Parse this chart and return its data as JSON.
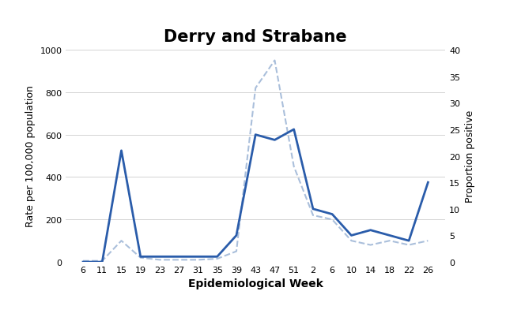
{
  "title": "Derry and Strabane",
  "xlabel": "Epidemiological Week",
  "ylabel_left": "Rate per 100,000 population",
  "ylabel_right": "Proportion positive",
  "x_tick_labels": [
    "6",
    "11",
    "15",
    "19",
    "23",
    "27",
    "31",
    "35",
    "39",
    "43",
    "47",
    "51",
    "2",
    "6",
    "10",
    "14",
    "18",
    "22",
    "26"
  ],
  "ylim_left": [
    0,
    1000
  ],
  "ylim_right": [
    0,
    40
  ],
  "yticks_left": [
    0,
    200,
    400,
    600,
    800,
    1000
  ],
  "yticks_right": [
    0,
    5,
    10,
    15,
    20,
    25,
    30,
    35,
    40
  ],
  "rate_data": [
    5,
    5,
    100,
    20,
    10,
    10,
    10,
    15,
    50,
    820,
    950,
    450,
    220,
    200,
    100,
    80,
    100,
    80,
    100
  ],
  "prop_data": [
    0,
    0,
    21,
    1,
    1,
    1,
    1,
    1,
    5,
    24,
    23,
    25,
    10,
    9,
    5,
    6,
    5,
    4,
    15
  ],
  "rate_color": "#aabfdb",
  "prop_color": "#2a5caa",
  "background_color": "#ffffff",
  "title_fontsize": 15,
  "legend_fontsize": 9,
  "tick_fontsize": 8,
  "axis_label_fontsize": 9,
  "xlabel_fontsize": 10
}
